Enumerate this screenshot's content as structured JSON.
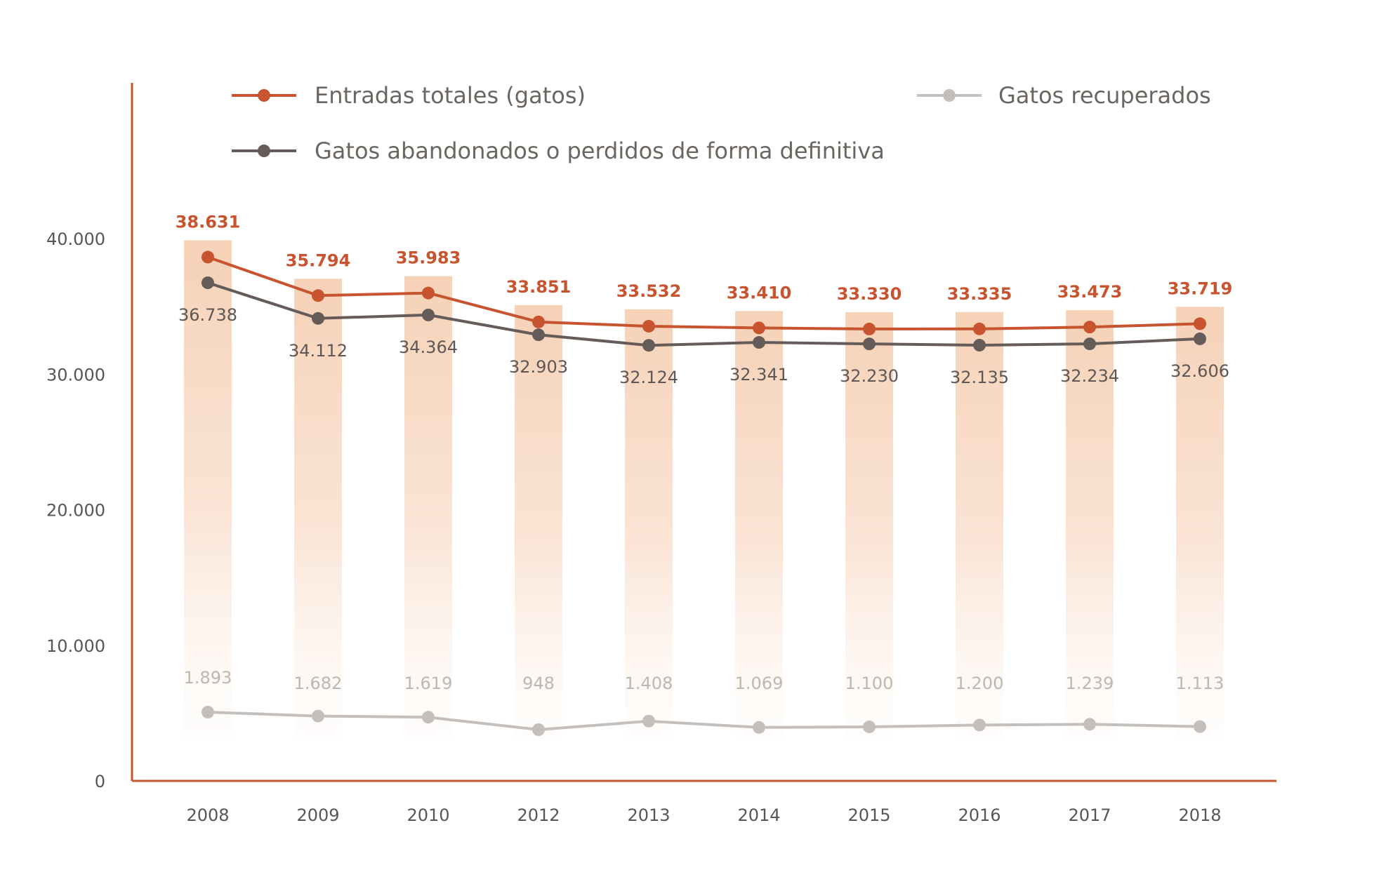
{
  "chart_data": {
    "type": "line",
    "categories": [
      "2008",
      "2009",
      "2010",
      "2012",
      "2013",
      "2014",
      "2015",
      "2016",
      "2017",
      "2018"
    ],
    "series": [
      {
        "name": "Entradas totales (gatos)",
        "values": [
          38631,
          35794,
          35983,
          33851,
          33532,
          33410,
          33330,
          33335,
          33473,
          33719
        ],
        "labels": [
          "38.631",
          "35.794",
          "35.983",
          "33.851",
          "33.532",
          "33.410",
          "33.330",
          "33.335",
          "33.473",
          "33.719"
        ],
        "color": "#c8542f"
      },
      {
        "name": "Gatos abandonados o perdidos de forma definitiva",
        "values": [
          36738,
          34112,
          34364,
          32903,
          32124,
          32341,
          32230,
          32135,
          32234,
          32606
        ],
        "labels": [
          "36.738",
          "34.112",
          "34.364",
          "32.903",
          "32.124",
          "32.341",
          "32.230",
          "32.135",
          "32.234",
          "32.606"
        ],
        "color": "#655c5a"
      },
      {
        "name": "Gatos recuperados",
        "values": [
          1893,
          1682,
          1619,
          948,
          1408,
          1069,
          1100,
          1200,
          1239,
          1113
        ],
        "labels": [
          "1.893",
          "1.682",
          "1.619",
          "948",
          "1.408",
          "1.069",
          "1.100",
          "1.200",
          "1.239",
          "1.113"
        ],
        "color": "#c4bfba"
      }
    ],
    "yticks": [
      0,
      10000,
      20000,
      30000,
      40000
    ],
    "ytick_labels": [
      "0",
      "10.000",
      "20.000",
      "30.000",
      "40.000"
    ],
    "ylim": [
      0,
      40000
    ],
    "bar_color": "#f6d6bd",
    "axis_color": "#c8542f",
    "grid": false,
    "legend_position": "top"
  }
}
